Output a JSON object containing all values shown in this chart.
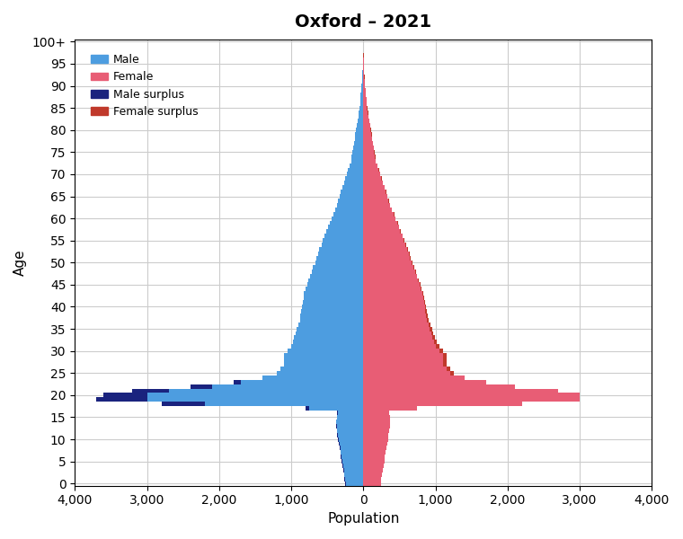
{
  "title": "Oxford – 2021",
  "xlabel": "Population",
  "ylabel": "Age",
  "xlim": 4000,
  "ylim_max": 101,
  "male_color": "#4d9de0",
  "female_color": "#e85d75",
  "male_surplus_color": "#1a237e",
  "female_surplus_color": "#c0392b",
  "legend_labels": [
    "Male",
    "Female",
    "Male surplus",
    "Female surplus"
  ],
  "background_color": "#ffffff",
  "grid_color": "#cccccc",
  "ages": [
    0,
    1,
    2,
    3,
    4,
    5,
    6,
    7,
    8,
    9,
    10,
    11,
    12,
    13,
    14,
    15,
    16,
    17,
    18,
    19,
    20,
    21,
    22,
    23,
    24,
    25,
    26,
    27,
    28,
    29,
    30,
    31,
    32,
    33,
    34,
    35,
    36,
    37,
    38,
    39,
    40,
    41,
    42,
    43,
    44,
    45,
    46,
    47,
    48,
    49,
    50,
    51,
    52,
    53,
    54,
    55,
    56,
    57,
    58,
    59,
    60,
    61,
    62,
    63,
    64,
    65,
    66,
    67,
    68,
    69,
    70,
    71,
    72,
    73,
    74,
    75,
    76,
    77,
    78,
    79,
    80,
    81,
    82,
    83,
    84,
    85,
    86,
    87,
    88,
    89,
    90,
    91,
    92,
    93,
    94,
    95,
    96,
    97,
    98,
    99,
    100
  ],
  "male": [
    250,
    260,
    270,
    280,
    290,
    300,
    310,
    320,
    330,
    340,
    350,
    360,
    370,
    380,
    380,
    370,
    360,
    800,
    2800,
    3700,
    3600,
    3200,
    2400,
    1800,
    1400,
    1200,
    1150,
    1100,
    1100,
    1100,
    1050,
    1000,
    980,
    960,
    940,
    920,
    900,
    880,
    870,
    860,
    850,
    840,
    830,
    820,
    800,
    780,
    760,
    740,
    720,
    700,
    670,
    650,
    630,
    610,
    580,
    560,
    540,
    510,
    490,
    470,
    440,
    420,
    390,
    370,
    350,
    330,
    310,
    290,
    270,
    250,
    230,
    210,
    190,
    170,
    160,
    150,
    140,
    130,
    120,
    110,
    100,
    90,
    80,
    70,
    60,
    50,
    45,
    40,
    35,
    30,
    25,
    20,
    15,
    10,
    8,
    5,
    3,
    2,
    1,
    1,
    1
  ],
  "female": [
    240,
    250,
    260,
    270,
    280,
    290,
    300,
    310,
    320,
    330,
    340,
    350,
    360,
    370,
    375,
    365,
    355,
    750,
    2200,
    3000,
    3000,
    2700,
    2100,
    1700,
    1400,
    1250,
    1200,
    1150,
    1150,
    1150,
    1100,
    1050,
    1020,
    990,
    970,
    950,
    930,
    900,
    890,
    880,
    870,
    850,
    840,
    830,
    810,
    790,
    770,
    750,
    730,
    710,
    680,
    660,
    640,
    620,
    590,
    570,
    550,
    520,
    500,
    480,
    450,
    430,
    400,
    375,
    355,
    335,
    315,
    295,
    275,
    255,
    235,
    215,
    195,
    175,
    165,
    155,
    145,
    135,
    125,
    115,
    105,
    95,
    85,
    75,
    65,
    55,
    48,
    42,
    37,
    32,
    27,
    22,
    17,
    12,
    9,
    6,
    4,
    3,
    2,
    1,
    1
  ]
}
